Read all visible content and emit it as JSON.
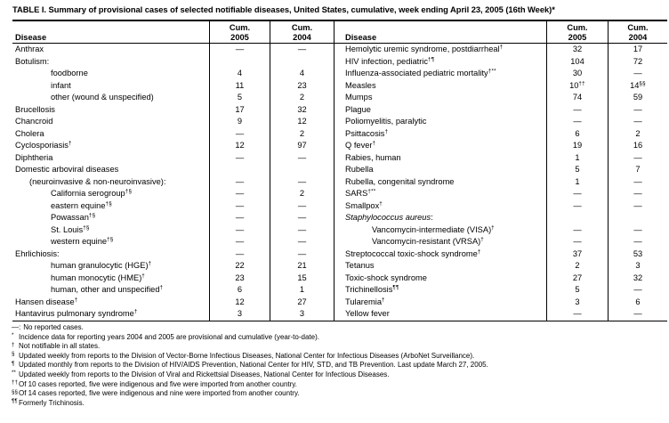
{
  "title": "TABLE I. Summary of provisional cases of selected notifiable diseases, United States, cumulative, week ending April 23, 2005 (16th Week)*",
  "header": {
    "disease": "Disease",
    "cum": "Cum.",
    "y2005": "2005",
    "y2004": "2004"
  },
  "left_rows": [
    {
      "name": "Anthrax",
      "v05": "—",
      "v04": "—"
    },
    {
      "name": "Botulism:",
      "v05": "",
      "v04": ""
    },
    {
      "name": "foodborne",
      "ind": 2,
      "v05": "4",
      "v04": "4"
    },
    {
      "name": "infant",
      "ind": 2,
      "v05": "11",
      "v04": "23"
    },
    {
      "name": "other (wound & unspecified)",
      "ind": 2,
      "v05": "5",
      "v04": "2"
    },
    {
      "name": "Brucellosis",
      "v05": "17",
      "v04": "32"
    },
    {
      "name": "Chancroid",
      "v05": "9",
      "v04": "12"
    },
    {
      "name": "Cholera",
      "v05": "—",
      "v04": "2"
    },
    {
      "name": "Cyclosporiasis",
      "sup": "†",
      "v05": "12",
      "v04": "97"
    },
    {
      "name": "Diphtheria",
      "v05": "—",
      "v04": "—"
    },
    {
      "name": "Domestic arboviral diseases",
      "v05": "",
      "v04": ""
    },
    {
      "name": "(neuroinvasive & non-neuroinvasive):",
      "ind": 1,
      "v05": "—",
      "v04": "—"
    },
    {
      "name": "California serogroup",
      "sup": "†§",
      "ind": 2,
      "v05": "—",
      "v04": "2"
    },
    {
      "name": "eastern equine",
      "sup": "†§",
      "ind": 2,
      "v05": "—",
      "v04": "—"
    },
    {
      "name": "Powassan",
      "sup": "†§",
      "ind": 2,
      "v05": "—",
      "v04": "—"
    },
    {
      "name": "St. Louis",
      "sup": "†§",
      "ind": 2,
      "v05": "—",
      "v04": "—"
    },
    {
      "name": "western equine",
      "sup": "†§",
      "ind": 2,
      "v05": "—",
      "v04": "—"
    },
    {
      "name": "Ehrlichiosis:",
      "v05": "—",
      "v04": "—"
    },
    {
      "name": "human granulocytic (HGE)",
      "sup": "†",
      "ind": 2,
      "v05": "22",
      "v04": "21"
    },
    {
      "name": "human monocytic (HME)",
      "sup": "†",
      "ind": 2,
      "v05": "23",
      "v04": "15"
    },
    {
      "name": "human, other and unspecified",
      "sup": "†",
      "ind": 2,
      "v05": "6",
      "v04": "1"
    },
    {
      "name": "Hansen disease",
      "sup": "†",
      "v05": "12",
      "v04": "27"
    },
    {
      "name": "Hantavirus pulmonary syndrome",
      "sup": "†",
      "v05": "3",
      "v04": "3"
    }
  ],
  "right_rows": [
    {
      "name": "Hemolytic uremic syndrome, postdiarrheal",
      "sup": "†",
      "v05": "32",
      "v04": "17"
    },
    {
      "name": "HIV infection, pediatric",
      "sup": "†¶",
      "v05": "104",
      "v04": "72"
    },
    {
      "name": "Influenza-associated pediatric mortality",
      "sup": "†**",
      "v05": "30",
      "v04": "—"
    },
    {
      "name": "Measles",
      "v05": "10",
      "v05s": "††",
      "v04": "14",
      "v04s": "§§"
    },
    {
      "name": "Mumps",
      "v05": "74",
      "v04": "59"
    },
    {
      "name": "Plague",
      "v05": "—",
      "v04": "—"
    },
    {
      "name": "Poliomyelitis, paralytic",
      "v05": "—",
      "v04": "—"
    },
    {
      "name": "Psittacosis",
      "sup": "†",
      "v05": "6",
      "v04": "2"
    },
    {
      "name": "Q fever",
      "sup": "†",
      "v05": "19",
      "v04": "16"
    },
    {
      "name": "Rabies, human",
      "v05": "1",
      "v04": "—"
    },
    {
      "name": "Rubella",
      "v05": "5",
      "v04": "7"
    },
    {
      "name": "Rubella, congenital syndrome",
      "v05": "1",
      "v04": "—"
    },
    {
      "name": "SARS",
      "sup": "†**",
      "v05": "—",
      "v04": "—"
    },
    {
      "name": "Smallpox",
      "sup": "†",
      "v05": "—",
      "v04": "—"
    },
    {
      "name": "Staphylococcus aureus",
      "italic": true,
      "tail": ":",
      "v05": "",
      "v04": ""
    },
    {
      "name": "Vancomycin-intermediate (VISA)",
      "sup": "†",
      "ind": 2,
      "v05": "—",
      "v04": "—"
    },
    {
      "name": "Vancomycin-resistant (VRSA)",
      "sup": "†",
      "ind": 2,
      "v05": "—",
      "v04": "—"
    },
    {
      "name": "Streptococcal toxic-shock syndrome",
      "sup": "†",
      "v05": "37",
      "v04": "53"
    },
    {
      "name": "Tetanus",
      "v05": "2",
      "v04": "3"
    },
    {
      "name": "Toxic-shock syndrome",
      "v05": "27",
      "v04": "32"
    },
    {
      "name": "Trichinellosis",
      "sup": "¶¶",
      "v05": "5",
      "v04": "—"
    },
    {
      "name": "Tularemia",
      "sup": "†",
      "v05": "3",
      "v04": "6"
    },
    {
      "name": "Yellow fever",
      "v05": "—",
      "v04": "—"
    }
  ],
  "footnotes": [
    {
      "marker": "—:",
      "sup": false,
      "text": "No reported cases."
    },
    {
      "marker": "*",
      "sup": true,
      "text": "Incidence data for reporting years 2004 and 2005 are provisional and cumulative (year-to-date)."
    },
    {
      "marker": "†",
      "sup": true,
      "text": "Not notifiable in all states."
    },
    {
      "marker": "§",
      "sup": true,
      "text": "Updated weekly from reports to the Division of Vector-Borne Infectious Diseases, National Center for Infectious Diseases (ArboNet Surveillance)."
    },
    {
      "marker": "¶",
      "sup": true,
      "text": "Updated monthly from reports to the Division of HIV/AIDS Prevention, National Center for HIV, STD, and TB Prevention. Last update March 27, 2005."
    },
    {
      "marker": "**",
      "sup": true,
      "text": "Updated weekly from reports to the Division of Viral and Rickettsial Diseases, National Center for Infectious Diseases."
    },
    {
      "marker": "††",
      "sup": true,
      "text": "Of 10 cases reported, five were indigenous and five were imported from another country."
    },
    {
      "marker": "§§",
      "sup": true,
      "text": "Of 14 cases reported, five were indigenous and nine were imported from another country."
    },
    {
      "marker": "¶¶",
      "sup": true,
      "text": "Formerly Trichinosis."
    }
  ]
}
